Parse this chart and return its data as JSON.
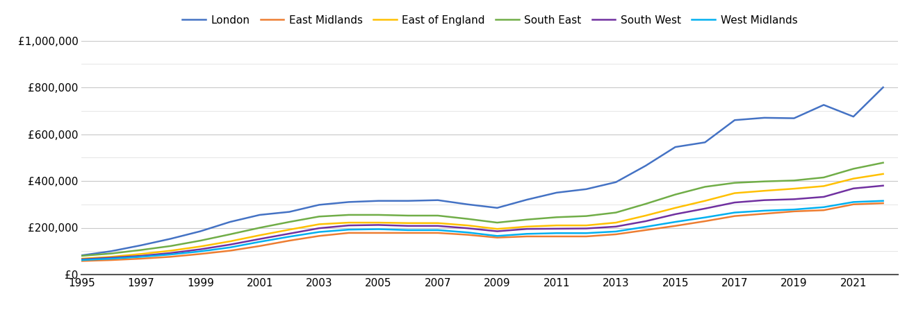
{
  "title": "",
  "background_color": "#ffffff",
  "legend_entries": [
    "London",
    "East Midlands",
    "East of England",
    "South East",
    "South West",
    "West Midlands"
  ],
  "line_colors": [
    "#4472c4",
    "#ed7d31",
    "#ffc000",
    "#70ad47",
    "#7030a0",
    "#00b0f0"
  ],
  "years": [
    1995,
    1996,
    1997,
    1998,
    1999,
    2000,
    2001,
    2002,
    2003,
    2004,
    2005,
    2006,
    2007,
    2008,
    2009,
    2010,
    2011,
    2012,
    2013,
    2014,
    2015,
    2016,
    2017,
    2018,
    2019,
    2020,
    2021,
    2022
  ],
  "London": [
    82000,
    100000,
    125000,
    153000,
    185000,
    225000,
    255000,
    268000,
    298000,
    310000,
    315000,
    315000,
    318000,
    300000,
    285000,
    320000,
    350000,
    365000,
    395000,
    465000,
    545000,
    565000,
    660000,
    670000,
    668000,
    725000,
    675000,
    800000
  ],
  "East_Midlands": [
    58000,
    62000,
    68000,
    76000,
    88000,
    102000,
    122000,
    145000,
    165000,
    178000,
    178000,
    178000,
    178000,
    170000,
    158000,
    163000,
    163000,
    163000,
    172000,
    190000,
    208000,
    228000,
    250000,
    260000,
    270000,
    275000,
    300000,
    305000
  ],
  "East_of_England": [
    68000,
    76000,
    88000,
    102000,
    120000,
    142000,
    168000,
    192000,
    215000,
    222000,
    222000,
    220000,
    220000,
    210000,
    195000,
    205000,
    210000,
    210000,
    222000,
    252000,
    285000,
    315000,
    348000,
    358000,
    367000,
    378000,
    410000,
    430000
  ],
  "South_East": [
    80000,
    90000,
    105000,
    122000,
    145000,
    172000,
    200000,
    225000,
    248000,
    255000,
    255000,
    252000,
    252000,
    238000,
    222000,
    235000,
    245000,
    250000,
    265000,
    302000,
    342000,
    375000,
    392000,
    398000,
    402000,
    415000,
    452000,
    478000
  ],
  "South_West": [
    65000,
    72000,
    80000,
    92000,
    108000,
    128000,
    152000,
    175000,
    198000,
    210000,
    212000,
    208000,
    208000,
    198000,
    185000,
    195000,
    196000,
    197000,
    205000,
    228000,
    258000,
    282000,
    308000,
    318000,
    322000,
    332000,
    368000,
    380000
  ],
  "West_Midlands": [
    62000,
    68000,
    76000,
    86000,
    99000,
    116000,
    140000,
    162000,
    182000,
    192000,
    194000,
    190000,
    190000,
    180000,
    165000,
    174000,
    177000,
    177000,
    184000,
    204000,
    225000,
    244000,
    265000,
    273000,
    278000,
    288000,
    310000,
    315000
  ],
  "ylim": [
    0,
    1000000
  ],
  "yticks_labeled": [
    0,
    200000,
    400000,
    600000,
    800000,
    1000000
  ],
  "yticks_minor": [
    100000,
    300000,
    500000,
    700000,
    900000
  ],
  "ytick_labels": [
    "£0",
    "£200,000",
    "£400,000",
    "£600,000",
    "£800,000",
    "£1,000,000"
  ],
  "grid_color": "#d0d0d0",
  "grid_color_major": "#c8c8c8",
  "grid_color_minor": "#e0e0e0",
  "line_width": 1.8
}
